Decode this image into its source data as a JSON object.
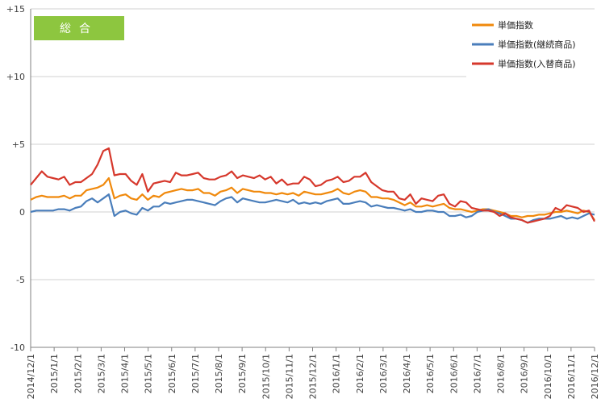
{
  "chart_data": {
    "type": "line",
    "title": "",
    "badge": "総合",
    "badge_color": "#8dc63f",
    "xlabel": "",
    "ylabel": "",
    "ylim": [
      -10,
      15
    ],
    "yticks": [
      {
        "v": 15,
        "label": "+15"
      },
      {
        "v": 10,
        "label": "+10"
      },
      {
        "v": 5,
        "label": "+5"
      },
      {
        "v": 0,
        "label": "0"
      },
      {
        "v": -5,
        "label": "-5"
      },
      {
        "v": -10,
        "label": "-10"
      }
    ],
    "xlabels": [
      "2014/12/1",
      "2015/1/1",
      "2015/2/1",
      "2015/3/1",
      "2015/4/1",
      "2015/5/1",
      "2015/6/1",
      "2015/7/1",
      "2015/8/1",
      "2015/9/1",
      "2015/10/1",
      "2015/11/1",
      "2015/12/1",
      "2016/1/1",
      "2016/2/1",
      "2016/3/1",
      "2016/4/1",
      "2016/5/1",
      "2016/6/1",
      "2016/7/1",
      "2016/8/1",
      "2016/9/1",
      "2016/10/1",
      "2016/11/1",
      "2016/12/1"
    ],
    "grid": "horizontal",
    "legend_position": "top-right",
    "series": [
      {
        "name": "単価指数",
        "color": "#f0890c",
        "values": [
          0.9,
          1.1,
          1.2,
          1.1,
          1.1,
          1.1,
          1.2,
          1.0,
          1.2,
          1.2,
          1.6,
          1.7,
          1.8,
          2.0,
          2.5,
          1.0,
          1.2,
          1.3,
          1.0,
          0.9,
          1.3,
          0.9,
          1.2,
          1.1,
          1.4,
          1.5,
          1.6,
          1.7,
          1.6,
          1.6,
          1.7,
          1.4,
          1.4,
          1.2,
          1.5,
          1.6,
          1.8,
          1.4,
          1.7,
          1.6,
          1.5,
          1.5,
          1.4,
          1.4,
          1.3,
          1.4,
          1.3,
          1.4,
          1.2,
          1.5,
          1.4,
          1.3,
          1.3,
          1.4,
          1.5,
          1.7,
          1.4,
          1.3,
          1.5,
          1.6,
          1.5,
          1.1,
          1.1,
          1.0,
          1.0,
          0.9,
          0.7,
          0.5,
          0.7,
          0.4,
          0.4,
          0.5,
          0.4,
          0.5,
          0.6,
          0.3,
          0.2,
          0.2,
          0.1,
          0.0,
          0.1,
          0.2,
          0.2,
          0.1,
          0.0,
          -0.1,
          -0.3,
          -0.3,
          -0.4,
          -0.3,
          -0.3,
          -0.2,
          -0.2,
          -0.1,
          0.0,
          0.0,
          0.1,
          0.0,
          -0.1,
          0.1,
          0.0,
          -0.6
        ]
      },
      {
        "name": "単価指数(継続商品)",
        "color": "#4a7ebb",
        "values": [
          0.0,
          0.1,
          0.1,
          0.1,
          0.1,
          0.2,
          0.2,
          0.1,
          0.3,
          0.4,
          0.8,
          1.0,
          0.7,
          1.0,
          1.3,
          -0.3,
          0.0,
          0.1,
          -0.1,
          -0.2,
          0.3,
          0.1,
          0.4,
          0.4,
          0.7,
          0.6,
          0.7,
          0.8,
          0.9,
          0.9,
          0.8,
          0.7,
          0.6,
          0.5,
          0.8,
          1.0,
          1.1,
          0.7,
          1.0,
          0.9,
          0.8,
          0.7,
          0.7,
          0.8,
          0.9,
          0.8,
          0.7,
          0.9,
          0.6,
          0.7,
          0.6,
          0.7,
          0.6,
          0.8,
          0.9,
          1.0,
          0.6,
          0.6,
          0.7,
          0.8,
          0.7,
          0.4,
          0.5,
          0.4,
          0.3,
          0.3,
          0.2,
          0.1,
          0.2,
          0.0,
          0.0,
          0.1,
          0.1,
          0.0,
          0.0,
          -0.3,
          -0.3,
          -0.2,
          -0.4,
          -0.3,
          0.0,
          0.1,
          0.2,
          0.0,
          -0.1,
          -0.3,
          -0.5,
          -0.5,
          -0.6,
          -0.8,
          -0.6,
          -0.5,
          -0.5,
          -0.5,
          -0.4,
          -0.3,
          -0.5,
          -0.4,
          -0.5,
          -0.3,
          -0.1,
          -0.2
        ]
      },
      {
        "name": "単価指数(入替商品)",
        "color": "#d6382c",
        "values": [
          2.0,
          2.5,
          3.0,
          2.6,
          2.5,
          2.4,
          2.6,
          2.0,
          2.2,
          2.2,
          2.5,
          2.8,
          3.5,
          4.5,
          4.7,
          2.7,
          2.8,
          2.8,
          2.3,
          2.0,
          2.8,
          1.5,
          2.1,
          2.2,
          2.3,
          2.2,
          2.9,
          2.7,
          2.7,
          2.8,
          2.9,
          2.5,
          2.4,
          2.4,
          2.6,
          2.7,
          3.0,
          2.5,
          2.7,
          2.6,
          2.5,
          2.7,
          2.4,
          2.6,
          2.1,
          2.4,
          2.0,
          2.1,
          2.1,
          2.6,
          2.4,
          1.9,
          2.0,
          2.3,
          2.4,
          2.6,
          2.2,
          2.3,
          2.6,
          2.6,
          2.9,
          2.2,
          1.9,
          1.6,
          1.5,
          1.5,
          1.0,
          0.9,
          1.3,
          0.6,
          1.0,
          0.9,
          0.8,
          1.2,
          1.3,
          0.6,
          0.4,
          0.8,
          0.7,
          0.3,
          0.2,
          0.1,
          0.1,
          0.0,
          -0.3,
          -0.1,
          -0.4,
          -0.5,
          -0.6,
          -0.8,
          -0.7,
          -0.6,
          -0.5,
          -0.3,
          0.3,
          0.1,
          0.5,
          0.4,
          0.3,
          0.0,
          0.1,
          -0.7
        ]
      }
    ]
  }
}
